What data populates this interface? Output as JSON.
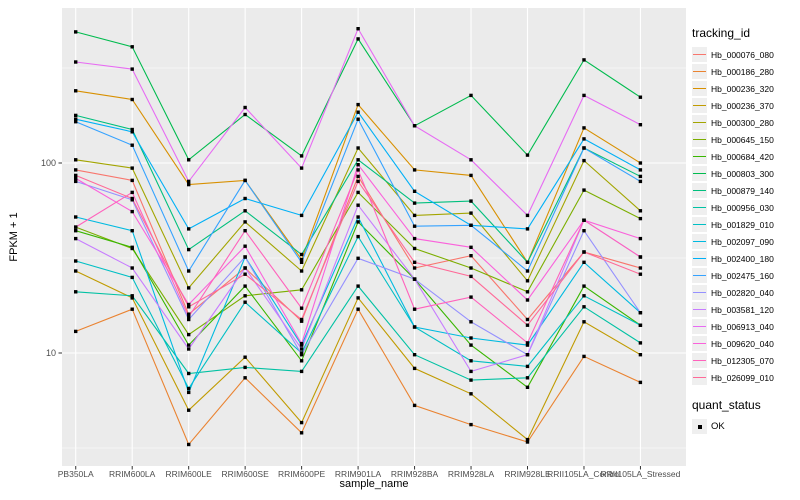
{
  "chart_data": {
    "type": "line",
    "title": "",
    "xlabel": "sample_name",
    "ylabel": "FPKM + 1",
    "y_scale": "log10",
    "grid": true,
    "panel_bg": "#EBEBEB",
    "grid_color": "#FFFFFF",
    "point_color": "#000000",
    "tick_text_color": "#4D4D4D",
    "legend_position": "right",
    "legend_title": "tracking_id",
    "legend2_title": "quant_status",
    "legend2_items": [
      {
        "label": "OK",
        "marker": "black-square"
      }
    ],
    "y_ticks": [
      {
        "label": "100",
        "value": 100
      },
      {
        "label": "10",
        "value": 10
      }
    ],
    "y_minor_values": [
      316.23,
      31.62,
      3.162
    ],
    "ylim": [
      2.4,
      650
    ],
    "x_categories": [
      "PB350LA",
      "RRIM600LA",
      "RRIM600LE",
      "RRIM600SE",
      "RRIM600PE",
      "RRIM901LA",
      "RRIM928BA",
      "RRIM928LA",
      "RRIM928LE",
      "RRII105LA_Control",
      "RRII105LA_Stressed"
    ],
    "series": [
      {
        "name": "Hb_000076_080",
        "color": "#F8766D",
        "values": [
          92,
          81,
          16,
          28,
          14.7,
          85,
          28,
          32.5,
          15,
          34,
          28
        ]
      },
      {
        "name": "Hb_000186_280",
        "color": "#EA8331",
        "values": [
          13,
          17,
          3.3,
          7.4,
          3.8,
          17,
          5.3,
          4.2,
          3.4,
          9.6,
          7
        ]
      },
      {
        "name": "Hb_000236_320",
        "color": "#D89000",
        "values": [
          240,
          216,
          77,
          81,
          31,
          203,
          92,
          86,
          30,
          153,
          100
        ]
      },
      {
        "name": "Hb_000236_370",
        "color": "#C09B00",
        "values": [
          27,
          19.5,
          5,
          9.5,
          4.3,
          19.5,
          8.3,
          6.1,
          3.5,
          14.6,
          9.8
        ]
      },
      {
        "name": "Hb_000300_280",
        "color": "#A3A500",
        "values": [
          104,
          94,
          22,
          49,
          27,
          120,
          53,
          54.5,
          24,
          103,
          56
        ]
      },
      {
        "name": "Hb_000645_150",
        "color": "#7CAE00",
        "values": [
          46,
          35.5,
          12.5,
          20,
          21.5,
          70,
          35.5,
          28,
          21,
          72,
          51
        ]
      },
      {
        "name": "Hb_000684_420",
        "color": "#39B600",
        "values": [
          44,
          36,
          11,
          22.5,
          9.1,
          49,
          24.5,
          11,
          6.6,
          22.5,
          14
        ]
      },
      {
        "name": "Hb_000803_300",
        "color": "#00BB4E",
        "values": [
          490,
          409,
          104,
          180,
          109,
          450,
          157,
          227,
          110,
          349,
          222
        ]
      },
      {
        "name": "Hb_000879_140",
        "color": "#00BF7D",
        "values": [
          178,
          150,
          35,
          56,
          33,
          104,
          61.5,
          63,
          30,
          120,
          85
        ]
      },
      {
        "name": "Hb_000956_030",
        "color": "#00C1A3",
        "values": [
          21,
          20,
          7.8,
          8.4,
          8,
          22.5,
          9.8,
          7.2,
          7.4,
          17.5,
          11.3
        ]
      },
      {
        "name": "Hb_001829_010",
        "color": "#00BFC4",
        "values": [
          30.5,
          25,
          6.5,
          18.5,
          10,
          41,
          13.7,
          9.1,
          8.5,
          20,
          14
        ]
      },
      {
        "name": "Hb_002097_090",
        "color": "#00BAE0",
        "values": [
          52,
          44,
          6.2,
          32,
          11,
          52,
          13.7,
          12,
          11,
          30,
          16.3
        ]
      },
      {
        "name": "Hb_002400_180",
        "color": "#00B0F6",
        "values": [
          170,
          146,
          45,
          65,
          53,
          185,
          71,
          47,
          45,
          134,
          92
        ]
      },
      {
        "name": "Hb_002475_160",
        "color": "#35A2FF",
        "values": [
          165,
          124,
          27,
          81,
          30,
          170,
          46.5,
          47,
          27,
          120,
          80
        ]
      },
      {
        "name": "Hb_002820_040",
        "color": "#9590FF",
        "values": [
          80,
          64,
          15,
          32,
          9.8,
          31.5,
          24.5,
          14.6,
          9.8,
          44,
          16.3
        ]
      },
      {
        "name": "Hb_003581_120",
        "color": "#C77CFF",
        "values": [
          40,
          28,
          10.5,
          28,
          10.5,
          60,
          24.5,
          8,
          9.8,
          50,
          32
        ]
      },
      {
        "name": "Hb_006913_040",
        "color": "#E76BF3",
        "values": [
          340,
          312,
          80,
          196,
          94,
          509,
          157,
          104,
          53,
          227,
          159
        ]
      },
      {
        "name": "Hb_009620_040",
        "color": "#FA62DB",
        "values": [
          83,
          55.5,
          18,
          36.5,
          11.2,
          98,
          40,
          36,
          19,
          50,
          40
        ]
      },
      {
        "name": "Hb_012305_070",
        "color": "#FF62BC",
        "values": [
          46,
          70,
          15.5,
          44,
          17.2,
          92,
          17,
          19.7,
          11.3,
          50,
          32
        ]
      },
      {
        "name": "Hb_026099_010",
        "color": "#FF6A98",
        "values": [
          86,
          65,
          17.5,
          26,
          15,
          80,
          30,
          25.3,
          14,
          34,
          26
        ]
      }
    ]
  }
}
